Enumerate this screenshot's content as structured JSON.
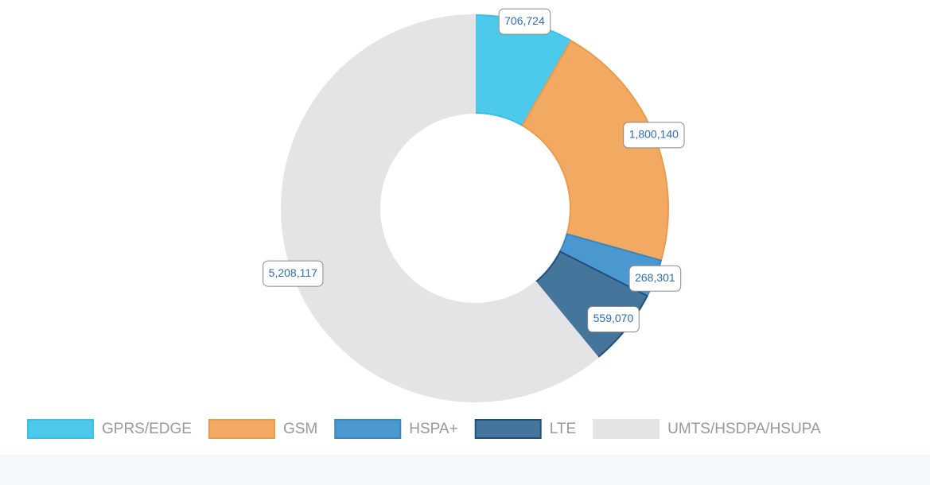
{
  "chart_data": {
    "type": "donut",
    "categories": [
      "GPRS/EDGE",
      "GSM",
      "HSPA+",
      "LTE",
      "UMTS/HSDPA/HSUPA"
    ],
    "values": [
      706724,
      1800140,
      268301,
      559070,
      5208117
    ],
    "value_labels": [
      "706,724",
      "1,800,140",
      "268,301",
      "559,070",
      "5,208,117"
    ],
    "colors": [
      "#4dc9ec",
      "#f2a962",
      "#4a98cf",
      "#46759c",
      "#e4e4e6"
    ],
    "borders": [
      "#3bbfe6",
      "#eb9a4c",
      "#3a86c0",
      "#1f4f7d",
      "#e4e4e6"
    ],
    "legend": "bottom"
  }
}
